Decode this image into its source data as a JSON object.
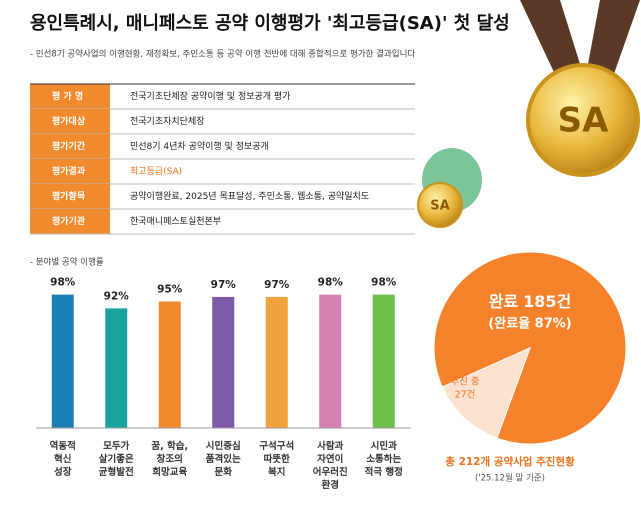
{
  "header": {
    "title": "용인특례시, 매니페스토 공약 이행평가 '최고등급(SA)' 첫 달성",
    "subtitle": "- 민선8기 공약사업의 이행현황, 재정확보, 주민소통 등 공약 이행 전반에 대해 종합적으로 평가한 결과입니다",
    "medal": "SA"
  },
  "table": {
    "rows": [
      [
        "평 가 명",
        "전국기초단체장 공약이행 및 정보공개 평가"
      ],
      [
        "평가대상",
        "전국기초자치단체장"
      ],
      [
        "평가기간",
        "민선8기 4년차 공약이행 및 정보공개"
      ],
      [
        "평가결과",
        "최고등급(SA)"
      ],
      [
        "평가항목",
        "공약이행완료, 2025년 목표달성, 주민소통, 웹소통, 공약일치도"
      ],
      [
        "평가기관",
        "한국매니페스토실천본부"
      ]
    ]
  },
  "chart_data": [
    {
      "type": "bar",
      "title": "- 분야별 공약 이행률",
      "categories": [
        "역동적\n혁신\n성장",
        "모두가\n살기좋은\n균형발전",
        "꿈, 학습,\n창조의\n희망교육",
        "시민중심\n품격있는\n문화",
        "구석구석\n따뜻한\n복지",
        "사람과\n자연이\n어우러진\n환경",
        "시민과\n소통하는\n적극 행정"
      ],
      "values": [
        98,
        92,
        95,
        97,
        97,
        98,
        98
      ],
      "value_labels": [
        "98%",
        "92%",
        "95%",
        "97%",
        "97%",
        "98%",
        "98%"
      ],
      "colors": [
        "#1b7fb6",
        "#1aa39e",
        "#f08a2c",
        "#7b5aa6",
        "#f2a23a",
        "#d681b2",
        "#6dbf4b"
      ],
      "ylim": [
        40,
        100
      ]
    },
    {
      "type": "pie",
      "categories": [
        "완료",
        "추진 중"
      ],
      "values": [
        185,
        27
      ],
      "value_labels": [
        "185건",
        "27건"
      ],
      "colors": [
        "#f5822a",
        "#fde3cf"
      ],
      "annotation": "(완료율 87%)",
      "caption": "총 212개 공약사업 추진현황",
      "note": "('25.12월 말 기준)"
    }
  ]
}
